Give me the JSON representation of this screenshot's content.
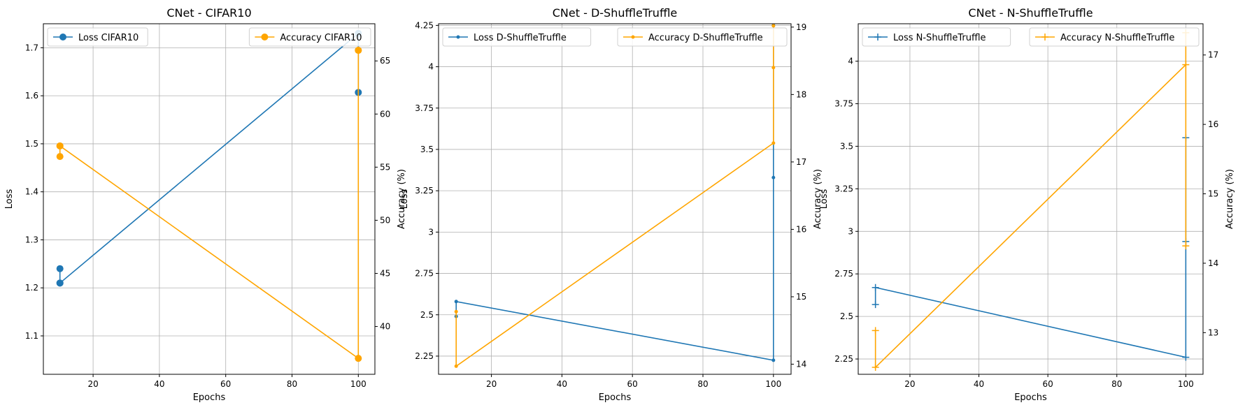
{
  "colors": {
    "loss": "#1f77b4",
    "accuracy": "#ffa500",
    "grid": "#b0b0b0"
  },
  "chart_data": [
    {
      "type": "line",
      "title": "CNet - CIFAR10",
      "xlabel": "Epochs",
      "ylabel": "Loss",
      "y2label": "Accuracy (%)",
      "marker": "circle",
      "grid": true,
      "xlim": [
        5,
        105
      ],
      "ylim": [
        1.02,
        1.75
      ],
      "y2lim": [
        35.5,
        68.5
      ],
      "xticks": [
        20,
        40,
        60,
        80,
        100
      ],
      "yticks": [
        1.1,
        1.2,
        1.3,
        1.4,
        1.5,
        1.6,
        1.7
      ],
      "y2ticks": [
        40,
        45,
        50,
        55,
        60,
        65
      ],
      "series": [
        {
          "name": "Loss CIFAR10",
          "axis": "left",
          "color": "#1f77b4",
          "x": [
            10,
            10,
            10,
            100,
            100
          ],
          "y": [
            1.24,
            1.21,
            1.21,
            1.73,
            1.607
          ]
        },
        {
          "name": "Accuracy CIFAR10",
          "axis": "right",
          "color": "#ffa500",
          "x": [
            10,
            10,
            10,
            100,
            100,
            100
          ],
          "y": [
            56.0,
            57.0,
            57.0,
            37.0,
            66.0,
            66.0
          ]
        }
      ],
      "legend": [
        {
          "name": "Loss CIFAR10",
          "position": "upper-left"
        },
        {
          "name": "Accuracy CIFAR10",
          "position": "upper-right"
        }
      ]
    },
    {
      "type": "line",
      "title": "CNet - D-ShuffleTruffle",
      "xlabel": "Epochs",
      "ylabel": "Loss",
      "y2label": "Accuracy (%)",
      "marker": "point",
      "grid": true,
      "xlim": [
        5,
        105
      ],
      "ylim": [
        2.14,
        4.26
      ],
      "y2lim": [
        13.85,
        19.05
      ],
      "xticks": [
        20,
        40,
        60,
        80,
        100
      ],
      "yticks": [
        2.25,
        2.5,
        2.75,
        3.0,
        3.25,
        3.5,
        3.75,
        4.0,
        4.25
      ],
      "y2ticks": [
        14,
        15,
        16,
        17,
        18,
        19
      ],
      "series": [
        {
          "name": "Loss D-ShuffleTruffle",
          "axis": "left",
          "color": "#1f77b4",
          "x": [
            10,
            10,
            100,
            100,
            100
          ],
          "y": [
            2.49,
            2.58,
            2.225,
            3.33,
            4.25
          ]
        },
        {
          "name": "Accuracy D-ShuffleTruffle",
          "axis": "right",
          "color": "#ffa500",
          "x": [
            10,
            10,
            100,
            100,
            100
          ],
          "y": [
            14.78,
            13.97,
            17.28,
            18.4,
            19.02
          ]
        }
      ],
      "legend": [
        {
          "name": "Loss D-ShuffleTruffle",
          "position": "upper-left"
        },
        {
          "name": "Accuracy D-ShuffleTruffle",
          "position": "upper-right"
        }
      ]
    },
    {
      "type": "line",
      "title": "CNet - N-ShuffleTruffle",
      "xlabel": "Epochs",
      "ylabel": "Loss",
      "y2label": "Accuracy (%)",
      "marker": "plus",
      "grid": true,
      "xlim": [
        5,
        105
      ],
      "ylim": [
        2.16,
        4.22
      ],
      "y2lim": [
        12.4,
        17.45
      ],
      "xticks": [
        20,
        40,
        60,
        80,
        100
      ],
      "yticks": [
        2.25,
        2.5,
        2.75,
        3.0,
        3.25,
        3.5,
        3.75,
        4.0
      ],
      "y2ticks": [
        13,
        14,
        15,
        16,
        17
      ],
      "series": [
        {
          "name": "Loss N-ShuffleTruffle",
          "axis": "left",
          "color": "#1f77b4",
          "x": [
            10,
            10,
            100,
            100,
            100
          ],
          "y": [
            2.57,
            2.67,
            2.26,
            2.94,
            3.55
          ]
        },
        {
          "name": "Accuracy N-ShuffleTruffle",
          "axis": "right",
          "color": "#ffa500",
          "x": [
            10,
            10,
            100,
            100,
            100
          ],
          "y": [
            13.03,
            12.5,
            16.86,
            14.25,
            17.32
          ]
        }
      ],
      "legend": [
        {
          "name": "Loss N-ShuffleTruffle",
          "position": "upper-left"
        },
        {
          "name": "Accuracy N-ShuffleTruffle",
          "position": "upper-right"
        }
      ]
    }
  ]
}
